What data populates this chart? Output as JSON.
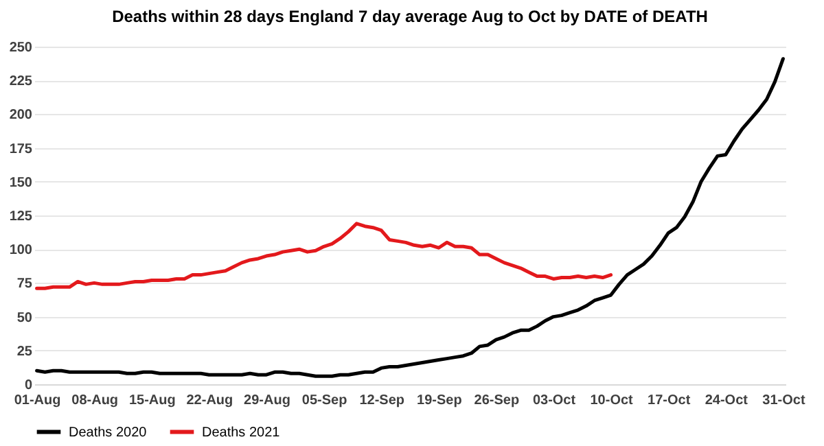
{
  "chart_data": {
    "type": "line",
    "title": "Deaths within 28 days England 7 day average Aug to Oct by DATE of DEATH",
    "categories": [
      "01-Aug",
      null,
      null,
      null,
      null,
      null,
      null,
      "08-Aug",
      null,
      null,
      null,
      null,
      null,
      null,
      "15-Aug",
      null,
      null,
      null,
      null,
      null,
      null,
      "22-Aug",
      null,
      null,
      null,
      null,
      null,
      null,
      "29-Aug",
      null,
      null,
      null,
      null,
      null,
      null,
      "05-Sep",
      null,
      null,
      null,
      null,
      null,
      null,
      "12-Sep",
      null,
      null,
      null,
      null,
      null,
      null,
      "19-Sep",
      null,
      null,
      null,
      null,
      null,
      null,
      "26-Sep",
      null,
      null,
      null,
      null,
      null,
      null,
      "03-Oct",
      null,
      null,
      null,
      null,
      null,
      null,
      "10-Oct",
      null,
      null,
      null,
      null,
      null,
      null,
      "17-Oct",
      null,
      null,
      null,
      null,
      null,
      null,
      "24-Oct",
      null,
      null,
      null,
      null,
      null,
      null,
      "31-Oct"
    ],
    "series": [
      {
        "name": "Deaths 2020",
        "color": "#000000",
        "values": [
          10,
          9,
          10,
          10,
          9,
          9,
          9,
          9,
          9,
          9,
          9,
          8,
          8,
          9,
          9,
          8,
          8,
          8,
          8,
          8,
          8,
          7,
          7,
          7,
          7,
          7,
          8,
          7,
          7,
          9,
          9,
          8,
          8,
          7,
          6,
          6,
          6,
          7,
          7,
          8,
          9,
          9,
          12,
          13,
          13,
          14,
          15,
          16,
          17,
          18,
          19,
          20,
          21,
          23,
          28,
          29,
          33,
          35,
          38,
          40,
          40,
          43,
          47,
          50,
          51,
          53,
          55,
          58,
          62,
          64,
          66,
          74,
          81,
          85,
          89,
          95,
          103,
          112,
          116,
          124,
          135,
          150,
          160,
          169,
          170,
          180,
          189,
          196,
          203,
          211,
          224,
          241
        ]
      },
      {
        "name": "Deaths 2021",
        "color": "#e3191c",
        "values": [
          71,
          71,
          72,
          72,
          72,
          76,
          74,
          75,
          74,
          74,
          74,
          75,
          76,
          76,
          77,
          77,
          77,
          78,
          78,
          81,
          81,
          82,
          83,
          84,
          87,
          90,
          92,
          93,
          95,
          96,
          98,
          99,
          100,
          98,
          99,
          102,
          104,
          108,
          113,
          119,
          117,
          116,
          114,
          107,
          106,
          105,
          103,
          102,
          103,
          101,
          105,
          102,
          102,
          101,
          96,
          96,
          93,
          90,
          88,
          86,
          83,
          80,
          80,
          78,
          79,
          79,
          80,
          79,
          80,
          79,
          81,
          null,
          null,
          null,
          null,
          null,
          null,
          null,
          null,
          null,
          null,
          null,
          null,
          null,
          null,
          null,
          null,
          null,
          null,
          null,
          null,
          null
        ]
      }
    ],
    "ylim": [
      0,
      250
    ],
    "yticks": [
      0,
      25,
      50,
      75,
      100,
      125,
      150,
      175,
      200,
      225,
      250
    ],
    "grid": "y",
    "legend": "bottom"
  }
}
